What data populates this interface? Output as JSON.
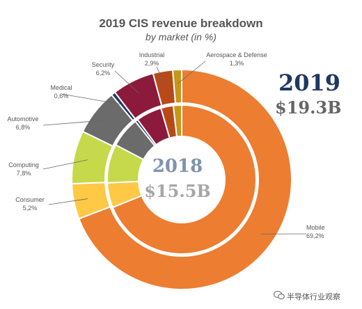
{
  "title": "2019 CIS revenue breakdown",
  "subtitle": "by market (in %)",
  "outer_year": "2019",
  "outer_total": "$19.3B",
  "inner_year": "2018",
  "inner_total": "$15.5B",
  "watermark": "半导体行业观察",
  "colors": {
    "Mobile": "#ed7d31",
    "Consumer": "#ffc845",
    "Computing": "#c5d94a",
    "Automotive": "#6b6b6b",
    "Medical": "#1f3864",
    "Security": "#8b1a3c",
    "Industrial": "#b84a1a",
    "Aerospace & Defense": "#c8961a"
  },
  "chart_data": {
    "type": "donut",
    "title": "2019 CIS revenue breakdown",
    "subtitle": "by market (in %)",
    "categories": [
      "Mobile",
      "Consumer",
      "Computing",
      "Automotive",
      "Medical",
      "Security",
      "Industrial",
      "Aerospace & Defense"
    ],
    "series": [
      {
        "name": "2019",
        "values": [
          69.2,
          5.2,
          7.8,
          6.8,
          0.6,
          6.2,
          2.9,
          1.3
        ],
        "labels": [
          "69,2%",
          "5,2%",
          "7,8%",
          "6,8%",
          "0,6%",
          "6,2%",
          "2,9%",
          "1,3%"
        ],
        "total": "$19.3B"
      },
      {
        "name": "2018",
        "values": [
          68.9,
          5.4,
          8.4,
          6.6,
          0.6,
          5.6,
          2.7,
          1.8
        ],
        "total": "$15.5B"
      }
    ]
  }
}
